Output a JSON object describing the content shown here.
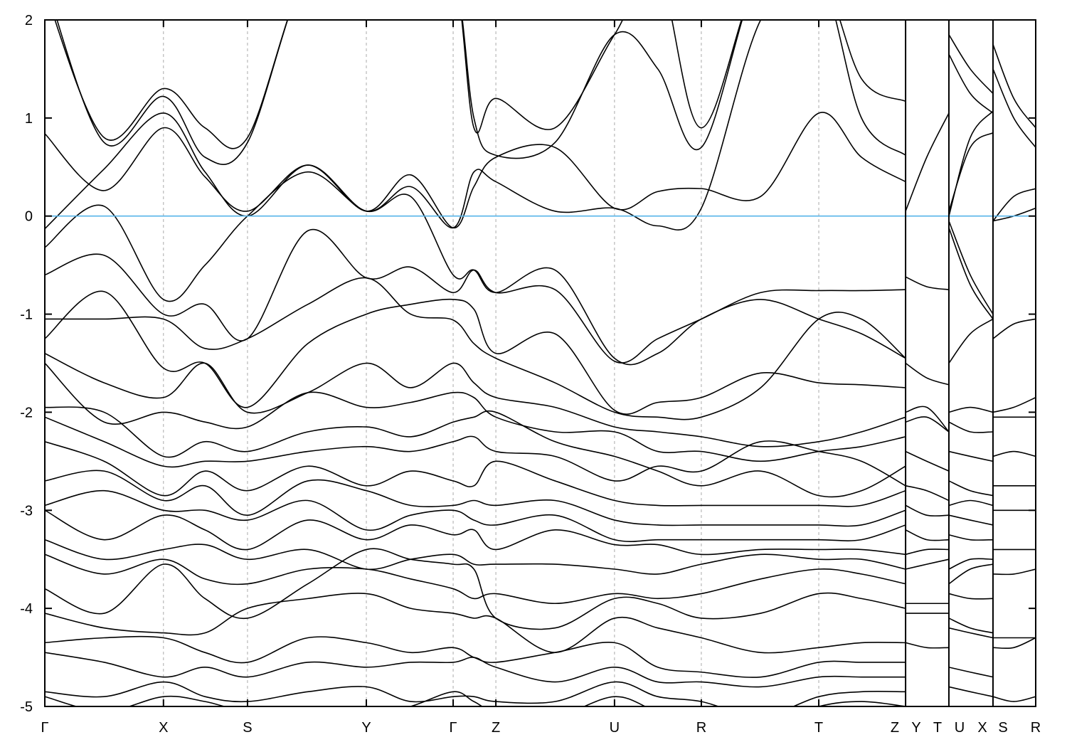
{
  "chart_data": {
    "type": "line",
    "title": "",
    "xlabel": "",
    "ylabel": "",
    "ylim": [
      -5,
      2
    ],
    "yticks": [
      "2",
      "1",
      "0",
      "-1",
      "-2",
      "-3",
      "-4",
      "-5"
    ],
    "ytick_values": [
      2,
      1,
      0,
      -1,
      -2,
      -3,
      -4,
      -5
    ],
    "grid": "dashed vertical lines at high-symmetry points",
    "legend": "none",
    "colors": {
      "bands": "#000000",
      "fermi_level": "#56B4E9",
      "grid": "#aaaaaa"
    },
    "fermi_level": 0,
    "kpoint_labels": [
      "Γ",
      "X",
      "S",
      "Y",
      "Γ",
      "Z",
      "U",
      "R",
      "T",
      "Z",
      "Y",
      "T",
      "U",
      "X",
      "S",
      "R"
    ],
    "kpoint_positions": [
      0,
      0.6,
      1.025,
      1.626,
      2.065,
      2.281,
      2.881,
      3.32,
      3.914,
      4.353,
      4.353,
      4.572,
      4.572,
      4.795,
      4.795,
      5.011
    ],
    "path_breaks": [
      4.353,
      4.572,
      4.795
    ],
    "segments": [
      {
        "k": [
          0,
          0.3,
          0.6,
          0.81,
          1.025,
          1.33,
          1.626,
          1.85,
          2.065,
          2.17,
          2.281,
          2.58,
          2.881,
          3.1,
          3.32,
          3.62,
          3.914,
          4.13,
          4.353
        ],
        "bands": [
          [
            2.3,
            0.8,
            1.3,
            0.9,
            0.8,
            2.5,
            2.5,
            2.5,
            2.5,
            0.9,
            1.2,
            0.9,
            1.85,
            2.5,
            0.9,
            2.5,
            2.5,
            1.4,
            1.17
          ],
          [
            2.4,
            0.75,
            1.22,
            0.6,
            0.75,
            2.5,
            2.5,
            2.5,
            2.5,
            1.0,
            0.62,
            0.75,
            1.85,
            1.5,
            0.7,
            2.5,
            2.5,
            1.0,
            0.62
          ],
          [
            0.84,
            0.26,
            0.9,
            0.4,
            0.05,
            0.52,
            0.05,
            0.42,
            -0.12,
            0.3,
            0.6,
            0.7,
            0.08,
            0.25,
            0.28,
            0.2,
            1.05,
            0.6,
            0.35
          ],
          [
            -0.13,
            0.48,
            1.05,
            0.45,
            0.0,
            0.52,
            0.05,
            0.3,
            -0.12,
            0.45,
            0.35,
            0.05,
            0.08,
            -0.1,
            0.08,
            2.0,
            2.5,
            2.5,
            2.5
          ],
          [
            -0.32,
            0.1,
            -0.85,
            -0.5,
            0.0,
            0.45,
            0.05,
            0.2,
            -0.6,
            -0.55,
            -0.78,
            -0.55,
            -1.45,
            -1.4,
            -1.05,
            -0.85,
            -1.05,
            -1.2,
            -1.45
          ],
          [
            -0.6,
            -0.4,
            -1.0,
            -0.9,
            -1.25,
            -0.15,
            -0.63,
            -0.52,
            -0.78,
            -0.55,
            -0.78,
            -0.75,
            -1.48,
            -1.25,
            -1.05,
            -0.78,
            -0.76,
            -0.76,
            -0.75
          ],
          [
            -1.25,
            -0.77,
            -1.55,
            -1.5,
            -1.95,
            -1.3,
            -1.0,
            -0.9,
            -0.85,
            -0.95,
            -1.4,
            -1.2,
            -1.98,
            -1.9,
            -1.85,
            -1.6,
            -1.7,
            -1.72,
            -1.75
          ],
          [
            -1.05,
            -1.05,
            -1.05,
            -1.35,
            -1.25,
            -0.9,
            -0.63,
            -1.0,
            -1.06,
            -1.3,
            -1.45,
            -1.7,
            -2.0,
            -2.05,
            -2.05,
            -1.75,
            -1.05,
            -1.05,
            -1.45
          ],
          [
            -1.4,
            -1.7,
            -1.85,
            -1.5,
            -2.0,
            -1.8,
            -1.5,
            -1.75,
            -1.5,
            -1.7,
            -1.85,
            -1.95,
            -2.15,
            -2.2,
            -2.25,
            -2.35,
            -2.3,
            -2.2,
            -2.05
          ],
          [
            -1.5,
            -2.1,
            -2.0,
            -2.1,
            -2.15,
            -1.8,
            -1.95,
            -1.9,
            -1.8,
            -1.85,
            -2.05,
            -2.2,
            -2.2,
            -2.4,
            -2.4,
            -2.5,
            -2.4,
            -2.35,
            -2.25
          ],
          [
            -1.95,
            -2.0,
            -2.45,
            -2.3,
            -2.4,
            -2.2,
            -2.15,
            -2.25,
            -2.1,
            -2.05,
            -2.0,
            -2.3,
            -2.45,
            -2.6,
            -2.75,
            -2.6,
            -2.85,
            -2.8,
            -2.55
          ],
          [
            -2.05,
            -2.3,
            -2.55,
            -2.5,
            -2.5,
            -2.4,
            -2.35,
            -2.4,
            -2.3,
            -2.25,
            -2.4,
            -2.45,
            -2.7,
            -2.55,
            -2.6,
            -2.3,
            -2.4,
            -2.5,
            -2.75
          ],
          [
            -2.3,
            -2.5,
            -2.85,
            -2.6,
            -2.8,
            -2.55,
            -2.75,
            -2.6,
            -2.7,
            -2.75,
            -2.5,
            -2.7,
            -2.9,
            -2.95,
            -2.95,
            -2.95,
            -2.95,
            -2.95,
            -2.8
          ],
          [
            -2.7,
            -2.6,
            -2.9,
            -2.75,
            -3.05,
            -2.7,
            -2.8,
            -2.95,
            -2.95,
            -2.9,
            -2.95,
            -2.9,
            -3.1,
            -3.15,
            -3.15,
            -3.15,
            -3.15,
            -3.15,
            -3.0
          ],
          [
            -2.95,
            -2.8,
            -3.0,
            -3.0,
            -3.1,
            -2.9,
            -3.2,
            -3.05,
            -3.0,
            -3.1,
            -3.15,
            -3.05,
            -3.3,
            -3.3,
            -3.3,
            -3.3,
            -3.3,
            -3.3,
            -3.15
          ],
          [
            -3.0,
            -3.3,
            -3.05,
            -3.2,
            -3.4,
            -3.1,
            -3.3,
            -3.15,
            -3.25,
            -3.2,
            -3.4,
            -3.2,
            -3.35,
            -3.35,
            -3.45,
            -3.4,
            -3.4,
            -3.4,
            -3.45
          ],
          [
            -3.3,
            -3.5,
            -3.4,
            -3.35,
            -3.5,
            -3.4,
            -3.6,
            -3.5,
            -3.45,
            -3.55,
            -3.55,
            -3.55,
            -3.6,
            -3.65,
            -3.55,
            -3.45,
            -3.5,
            -3.5,
            -3.6
          ],
          [
            -3.45,
            -3.65,
            -3.5,
            -3.7,
            -3.75,
            -3.6,
            -3.6,
            -3.7,
            -3.8,
            -3.9,
            -3.85,
            -3.95,
            -3.85,
            -3.9,
            -3.85,
            -3.7,
            -3.6,
            -3.65,
            -3.75
          ],
          [
            -3.8,
            -4.05,
            -3.55,
            -3.9,
            -4.1,
            -3.75,
            -3.4,
            -3.5,
            -3.55,
            -3.6,
            -4.1,
            -4.2,
            -3.9,
            -3.95,
            -4.1,
            -4.05,
            -3.85,
            -3.9,
            -4.0
          ],
          [
            -4.05,
            -4.2,
            -4.25,
            -4.25,
            -4.0,
            -3.9,
            -3.85,
            -4.0,
            -4.05,
            -4.1,
            -4.1,
            -4.45,
            -4.1,
            -4.2,
            -4.3,
            -4.45,
            -4.4,
            -4.35,
            -4.35
          ],
          [
            -4.35,
            -4.3,
            -4.3,
            -4.45,
            -4.55,
            -4.3,
            -4.35,
            -4.45,
            -4.4,
            -4.5,
            -4.55,
            -4.45,
            -4.35,
            -4.6,
            -4.65,
            -4.7,
            -4.55,
            -4.55,
            -4.55
          ],
          [
            -4.45,
            -4.55,
            -4.7,
            -4.6,
            -4.7,
            -4.55,
            -4.6,
            -4.55,
            -4.55,
            -4.5,
            -4.6,
            -4.75,
            -4.6,
            -4.75,
            -4.75,
            -4.8,
            -4.7,
            -4.7,
            -4.7
          ],
          [
            -4.85,
            -4.9,
            -4.75,
            -4.9,
            -4.95,
            -4.85,
            -4.8,
            -4.95,
            -4.9,
            -4.9,
            -4.95,
            -4.95,
            -4.75,
            -4.9,
            -4.95,
            -5.1,
            -4.9,
            -4.85,
            -4.85
          ],
          [
            -4.9,
            -5.05,
            -4.9,
            -4.95,
            -5.05,
            -5.05,
            -5.1,
            -5.0,
            -4.85,
            -4.95,
            -5.05,
            -5.1,
            -4.9,
            -5.05,
            -5.1,
            -5.2,
            -5.0,
            -4.95,
            -5.0
          ]
        ]
      },
      {
        "k": [
          4.353,
          4.46,
          4.572
        ],
        "bands": [
          [
            0.05,
            0.6,
            1.05
          ],
          [
            -0.62,
            -0.72,
            -0.75
          ],
          [
            -1.5,
            -1.65,
            -1.72
          ],
          [
            -2.0,
            -1.95,
            -2.2
          ],
          [
            -2.1,
            -2.05,
            -2.2
          ],
          [
            -2.4,
            -2.5,
            -2.6
          ],
          [
            -2.75,
            -2.8,
            -2.9
          ],
          [
            -2.95,
            -3.05,
            -3.05
          ],
          [
            -3.2,
            -3.3,
            -3.3
          ],
          [
            -3.45,
            -3.4,
            -3.4
          ],
          [
            -3.6,
            -3.55,
            -3.5
          ],
          [
            -3.95,
            -3.95,
            -3.95
          ],
          [
            -4.05,
            -4.05,
            -4.05
          ],
          [
            -4.35,
            -4.4,
            -4.4
          ]
        ]
      },
      {
        "k": [
          4.572,
          4.68,
          4.795
        ],
        "bands": [
          [
            1.85,
            1.5,
            1.25
          ],
          [
            1.65,
            1.25,
            1.05
          ],
          [
            0.0,
            0.8,
            1.07
          ],
          [
            0.05,
            0.7,
            0.85
          ],
          [
            -0.05,
            -0.6,
            -1.0
          ],
          [
            -0.12,
            -0.7,
            -1.05
          ],
          [
            -1.5,
            -1.2,
            -1.05
          ],
          [
            -2.0,
            -1.95,
            -2.0
          ],
          [
            -2.1,
            -2.2,
            -2.2
          ],
          [
            -2.4,
            -2.45,
            -2.5
          ],
          [
            -2.7,
            -2.8,
            -2.85
          ],
          [
            -2.95,
            -2.9,
            -2.95
          ],
          [
            -3.05,
            -3.1,
            -3.15
          ],
          [
            -3.25,
            -3.3,
            -3.3
          ],
          [
            -3.6,
            -3.5,
            -3.5
          ],
          [
            -3.75,
            -3.6,
            -3.55
          ],
          [
            -3.85,
            -3.9,
            -3.9
          ],
          [
            -4.1,
            -4.2,
            -4.25
          ],
          [
            -4.2,
            -4.25,
            -4.3
          ],
          [
            -4.6,
            -4.65,
            -4.7
          ],
          [
            -4.8,
            -4.85,
            -4.9
          ]
        ]
      },
      {
        "k": [
          4.795,
          4.9,
          5.011
        ],
        "bands": [
          [
            1.75,
            1.2,
            0.9
          ],
          [
            1.5,
            1.0,
            0.7
          ],
          [
            -0.05,
            0.0,
            0.08
          ],
          [
            -0.05,
            0.2,
            0.28
          ],
          [
            -1.25,
            -1.1,
            -1.05
          ],
          [
            -2.05,
            -2.05,
            -2.05
          ],
          [
            -2.0,
            -1.95,
            -1.85
          ],
          [
            -2.45,
            -2.4,
            -2.45
          ],
          [
            -2.75,
            -2.75,
            -2.75
          ],
          [
            -3.0,
            -3.0,
            -3.0
          ],
          [
            -3.4,
            -3.4,
            -3.4
          ],
          [
            -3.65,
            -3.65,
            -3.6
          ],
          [
            -4.3,
            -4.3,
            -4.3
          ],
          [
            -4.4,
            -4.4,
            -4.3
          ],
          [
            -4.9,
            -4.95,
            -4.9
          ]
        ]
      }
    ]
  }
}
